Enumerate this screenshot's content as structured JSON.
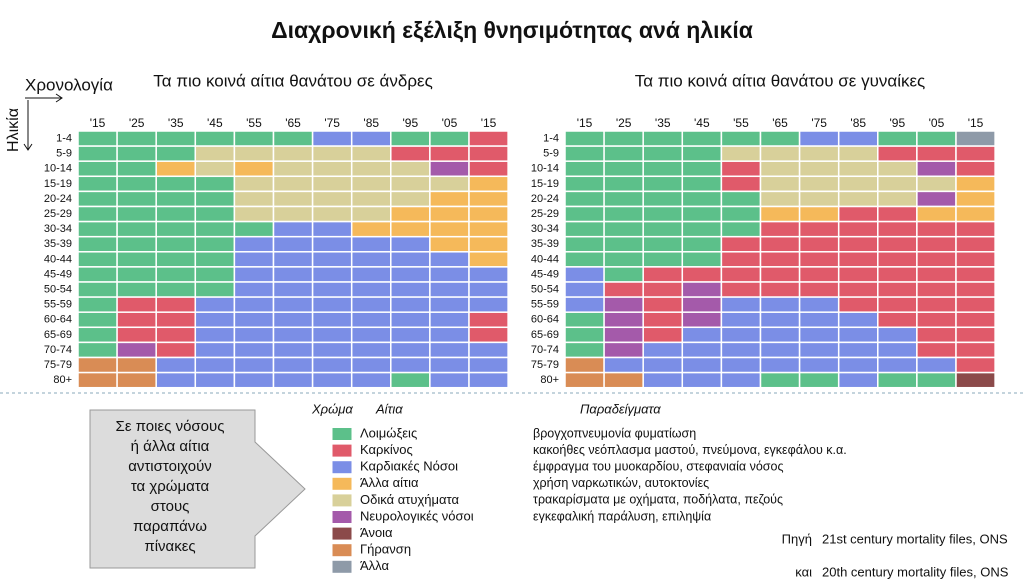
{
  "title": "Διαχρονική εξέλιξη θνησιμότητας ανά ηλικία",
  "x_label": "Χρονολογία",
  "y_label": "Ηλικία",
  "years": [
    "'15",
    "'25",
    "'35",
    "'45",
    "'55",
    "'65",
    "'75",
    "'85",
    "'95",
    "'05",
    "'15"
  ],
  "ages": [
    "1-4",
    "5-9",
    "10-14",
    "15-19",
    "20-24",
    "25-29",
    "30-34",
    "35-39",
    "40-44",
    "45-49",
    "50-54",
    "55-59",
    "60-64",
    "65-69",
    "70-74",
    "75-79",
    "80+"
  ],
  "panels": [
    {
      "title": "Τα πιο κοινά αίτια θανάτου σε άνδρες",
      "grid": [
        [
          0,
          0,
          0,
          0,
          0,
          0,
          2,
          2,
          0,
          0,
          1
        ],
        [
          0,
          0,
          0,
          4,
          4,
          4,
          4,
          4,
          1,
          1,
          1
        ],
        [
          0,
          0,
          3,
          4,
          3,
          4,
          4,
          4,
          4,
          5,
          1
        ],
        [
          0,
          0,
          0,
          0,
          4,
          4,
          4,
          4,
          4,
          4,
          3
        ],
        [
          0,
          0,
          0,
          0,
          4,
          4,
          4,
          4,
          4,
          3,
          3
        ],
        [
          0,
          0,
          0,
          0,
          4,
          4,
          4,
          4,
          3,
          3,
          3
        ],
        [
          0,
          0,
          0,
          0,
          0,
          2,
          2,
          3,
          3,
          3,
          3
        ],
        [
          0,
          0,
          0,
          0,
          2,
          2,
          2,
          2,
          2,
          3,
          3
        ],
        [
          0,
          0,
          0,
          0,
          2,
          2,
          2,
          2,
          2,
          2,
          3
        ],
        [
          0,
          0,
          0,
          0,
          2,
          2,
          2,
          2,
          2,
          2,
          2
        ],
        [
          0,
          0,
          0,
          0,
          2,
          2,
          2,
          2,
          2,
          2,
          2
        ],
        [
          0,
          1,
          1,
          2,
          2,
          2,
          2,
          2,
          2,
          2,
          2
        ],
        [
          0,
          1,
          1,
          2,
          2,
          2,
          2,
          2,
          2,
          2,
          1
        ],
        [
          0,
          1,
          1,
          2,
          2,
          2,
          2,
          2,
          2,
          2,
          1
        ],
        [
          0,
          5,
          1,
          2,
          2,
          2,
          2,
          2,
          2,
          2,
          2
        ],
        [
          7,
          7,
          2,
          2,
          2,
          2,
          2,
          2,
          2,
          2,
          2
        ],
        [
          7,
          7,
          2,
          2,
          2,
          2,
          2,
          2,
          0,
          2,
          2
        ]
      ]
    },
    {
      "title": "Τα πιο κοινά αίτια θανάτου σε γυναίκες",
      "grid": [
        [
          0,
          0,
          0,
          0,
          0,
          0,
          2,
          2,
          0,
          0,
          8
        ],
        [
          0,
          0,
          0,
          0,
          4,
          4,
          4,
          4,
          1,
          1,
          1
        ],
        [
          0,
          0,
          0,
          0,
          1,
          4,
          4,
          4,
          4,
          5,
          1
        ],
        [
          0,
          0,
          0,
          0,
          1,
          4,
          4,
          4,
          4,
          4,
          3
        ],
        [
          0,
          0,
          0,
          0,
          0,
          4,
          4,
          4,
          4,
          5,
          3
        ],
        [
          0,
          0,
          0,
          0,
          0,
          3,
          3,
          1,
          1,
          3,
          3
        ],
        [
          0,
          0,
          0,
          0,
          0,
          1,
          1,
          1,
          1,
          1,
          1
        ],
        [
          0,
          0,
          0,
          0,
          1,
          1,
          1,
          1,
          1,
          1,
          1
        ],
        [
          0,
          0,
          0,
          0,
          1,
          1,
          1,
          1,
          1,
          1,
          1
        ],
        [
          2,
          0,
          1,
          1,
          1,
          1,
          1,
          1,
          1,
          1,
          1
        ],
        [
          2,
          1,
          1,
          5,
          1,
          1,
          1,
          1,
          1,
          1,
          1
        ],
        [
          2,
          5,
          1,
          5,
          2,
          2,
          2,
          1,
          1,
          1,
          1
        ],
        [
          0,
          5,
          1,
          5,
          2,
          2,
          2,
          2,
          1,
          1,
          1
        ],
        [
          0,
          5,
          1,
          2,
          2,
          2,
          2,
          2,
          2,
          1,
          1
        ],
        [
          0,
          5,
          2,
          2,
          2,
          2,
          2,
          2,
          2,
          1,
          1
        ],
        [
          7,
          2,
          2,
          2,
          2,
          2,
          2,
          2,
          2,
          2,
          1
        ],
        [
          7,
          7,
          2,
          2,
          2,
          0,
          0,
          2,
          0,
          0,
          6
        ]
      ]
    }
  ],
  "legend": {
    "color_header": "Χρώμα",
    "cause_header": "Αίτια",
    "examples_header": "Παραδείγματα",
    "items": [
      {
        "label": "Λοιμώξεις",
        "color": "#5cc08a",
        "example": "βρογχοπνευμονία φυματίωση"
      },
      {
        "label": "Καρκίνος",
        "color": "#e05a6a",
        "example": "κακοήθες νεόπλασμα μαστού, πνεύμονα, εγκεφάλου κ.α."
      },
      {
        "label": "Καρδιακές Νόσοι",
        "color": "#7b8ee6",
        "example": "έμφραγμα του μυοκαρδίου, στεφανιαία νόσος"
      },
      {
        "label": "Άλλα αίτια",
        "color": "#f5b95a",
        "example": "χρήση ναρκωτικών, αυτοκτονίες"
      },
      {
        "label": "Οδικά ατυχήματα",
        "color": "#d8d09a",
        "example": "τρακαρίσματα με οχήματα, ποδήλατα, πεζούς"
      },
      {
        "label": "Νευρολογικές νόσοι",
        "color": "#a45aaa",
        "example": "εγκεφαλική παράλυση, επιληψία"
      },
      {
        "label": "Άνοια",
        "color": "#8b4a4a",
        "example": null
      },
      {
        "label": "Γήρανση",
        "color": "#d98c55",
        "example": null
      },
      {
        "label": "Άλλα",
        "color": "#8e9aa8",
        "example": null
      }
    ]
  },
  "box_text": [
    "Σε ποιες νόσους",
    "ή άλλα αίτια",
    "αντιστοιχούν",
    "τα χρώματα",
    "στους",
    "παραπάνω",
    "πίνακες"
  ],
  "sources": [
    {
      "prefix": "Πηγή",
      "text": "21st century mortality files, ONS"
    },
    {
      "prefix": "και",
      "text": "20th century mortality files, ONS"
    }
  ]
}
